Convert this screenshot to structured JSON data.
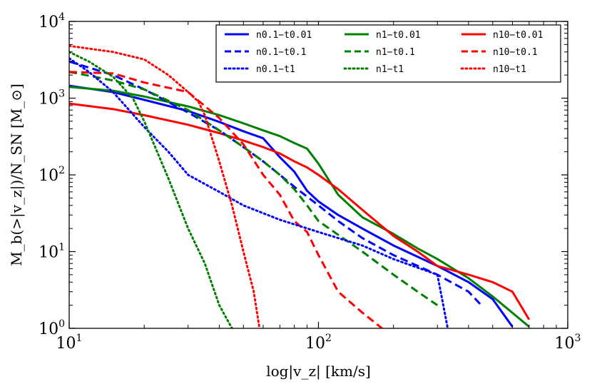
{
  "chart_data": {
    "type": "line",
    "title": "",
    "xlabel": "log|v_z| [km/s]",
    "ylabel": "M_b(>|v_z|)/N_SN [M_⊙]",
    "xscale": "log",
    "yscale": "log",
    "xlim": [
      10,
      1000
    ],
    "ylim": [
      1,
      10000
    ],
    "xticks": [
      {
        "value": 10,
        "base": "10",
        "exp": "1"
      },
      {
        "value": 100,
        "base": "10",
        "exp": "2"
      },
      {
        "value": 1000,
        "base": "10",
        "exp": "3"
      }
    ],
    "yticks": [
      {
        "value": 1,
        "base": "10",
        "exp": "0"
      },
      {
        "value": 10,
        "base": "10",
        "exp": "1"
      },
      {
        "value": 100,
        "base": "10",
        "exp": "2"
      },
      {
        "value": 1000,
        "base": "10",
        "exp": "3"
      },
      {
        "value": 10000,
        "base": "10",
        "exp": "4"
      }
    ],
    "legend_position": "top-right",
    "series": [
      {
        "name": "n0.1−t0.01",
        "color": "#0000ff",
        "style": "solid",
        "x": [
          10,
          15,
          20,
          30,
          40,
          50,
          60,
          70,
          80,
          90,
          100,
          120,
          150,
          200,
          300,
          400,
          500,
          600
        ],
        "y": [
          1450,
          1200,
          950,
          680,
          490,
          370,
          300,
          170,
          110,
          62,
          45,
          30,
          20,
          12,
          6.5,
          4,
          2.4,
          1.05
        ]
      },
      {
        "name": "n1−t0.01",
        "color": "#008000",
        "style": "solid",
        "x": [
          10,
          15,
          20,
          30,
          40,
          50,
          60,
          70,
          80,
          90,
          100,
          120,
          150,
          200,
          250,
          300,
          400,
          500,
          700
        ],
        "y": [
          1400,
          1250,
          1050,
          780,
          600,
          470,
          380,
          320,
          260,
          220,
          140,
          55,
          28,
          17,
          11,
          8,
          4.5,
          2.6,
          1.05
        ]
      },
      {
        "name": "n10−t0.01",
        "color": "#ff0000",
        "style": "solid",
        "x": [
          10,
          15,
          20,
          30,
          40,
          50,
          60,
          70,
          80,
          90,
          100,
          120,
          150,
          200,
          250,
          300,
          400,
          500,
          600,
          700
        ],
        "y": [
          850,
          720,
          600,
          450,
          350,
          280,
          230,
          190,
          150,
          125,
          100,
          65,
          35,
          16,
          10,
          6.5,
          5,
          4,
          3,
          1.3
        ]
      },
      {
        "name": "n0.1−t0.1",
        "color": "#0000ff",
        "style": "dashed",
        "x": [
          10,
          15,
          20,
          30,
          40,
          50,
          60,
          70,
          80,
          100,
          120,
          150,
          200,
          300,
          400,
          450
        ],
        "y": [
          3000,
          2000,
          1300,
          650,
          380,
          230,
          150,
          100,
          70,
          40,
          25,
          15,
          9,
          5,
          3,
          2
        ]
      },
      {
        "name": "n1−t0.1",
        "color": "#008000",
        "style": "dashed",
        "x": [
          10,
          15,
          20,
          30,
          40,
          50,
          60,
          70,
          80,
          90,
          100,
          150,
          200,
          250,
          300
        ],
        "y": [
          2200,
          1700,
          1300,
          700,
          380,
          230,
          150,
          100,
          65,
          40,
          25,
          10,
          5,
          3,
          2
        ]
      },
      {
        "name": "n10−t0.1",
        "color": "#ff0000",
        "style": "dashed",
        "x": [
          10,
          15,
          20,
          30,
          40,
          50,
          60,
          70,
          80,
          90,
          100,
          120,
          150,
          180
        ],
        "y": [
          2200,
          2100,
          1600,
          1200,
          550,
          250,
          100,
          55,
          25,
          18,
          9,
          3,
          1.6,
          1
        ]
      },
      {
        "name": "n0.1−t1",
        "color": "#0000ff",
        "style": "dotted",
        "x": [
          10,
          12,
          15,
          20,
          25,
          30,
          40,
          50,
          70,
          100,
          150,
          200,
          300,
          330
        ],
        "y": [
          3300,
          2200,
          1200,
          420,
          200,
          100,
          60,
          40,
          26,
          18,
          12,
          8,
          5,
          1
        ]
      },
      {
        "name": "n1−t1",
        "color": "#008000",
        "style": "dotted",
        "x": [
          10,
          12,
          15,
          18,
          20,
          25,
          30,
          35,
          40,
          45
        ],
        "y": [
          4000,
          3000,
          1900,
          1000,
          500,
          90,
          20,
          7,
          2,
          1
        ]
      },
      {
        "name": "n10−t1",
        "color": "#ff0000",
        "style": "dotted",
        "x": [
          10,
          15,
          20,
          25,
          30,
          33,
          35,
          40,
          45,
          50,
          55,
          58
        ],
        "y": [
          4800,
          4000,
          3200,
          2000,
          1200,
          900,
          600,
          150,
          40,
          10,
          3,
          1
        ]
      }
    ]
  }
}
